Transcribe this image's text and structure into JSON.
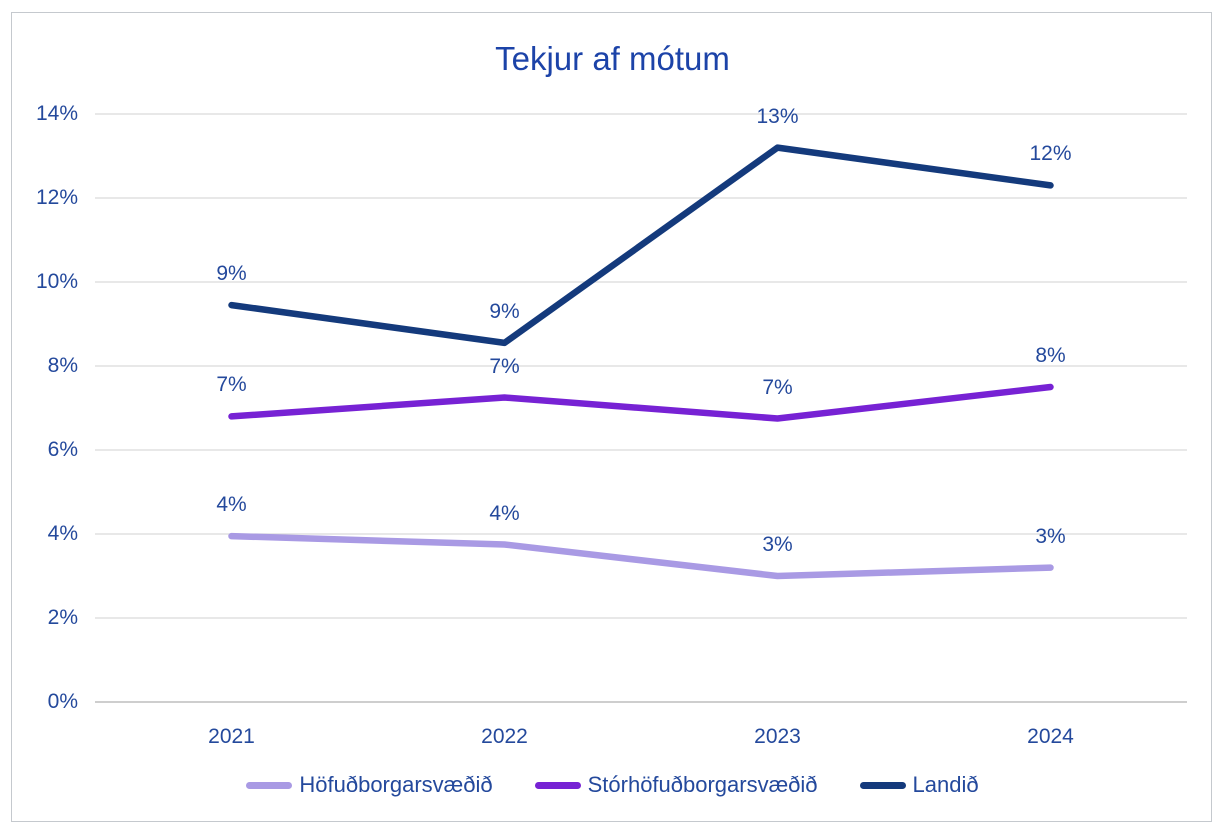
{
  "chart_data": {
    "type": "line",
    "title": "Tekjur af mótum",
    "categories": [
      "2021",
      "2022",
      "2023",
      "2024"
    ],
    "series": [
      {
        "name": "Höfuðborgarsvæðið",
        "color": "#a99ae4",
        "values": [
          3.95,
          3.75,
          3.0,
          3.2
        ],
        "point_labels": [
          "4%",
          "4%",
          "3%",
          "3%"
        ]
      },
      {
        "name": "Stórhöfuðborgarsvæðið",
        "color": "#7722d4",
        "values": [
          6.8,
          7.25,
          6.75,
          7.5
        ],
        "point_labels": [
          "7%",
          "7%",
          "7%",
          "8%"
        ]
      },
      {
        "name": "Landið",
        "color": "#143a7c",
        "values": [
          9.45,
          8.55,
          13.2,
          12.3
        ],
        "point_labels": [
          "9%",
          "9%",
          "13%",
          "12%"
        ]
      }
    ],
    "y_axis": {
      "min": 0,
      "max": 14,
      "step": 2,
      "tick_labels": [
        "0%",
        "2%",
        "4%",
        "6%",
        "8%",
        "10%",
        "12%",
        "14%"
      ]
    },
    "x_axis": {
      "tick_labels": [
        "2021",
        "2022",
        "2023",
        "2024"
      ]
    },
    "grid": true,
    "legend_position": "bottom",
    "colors": {
      "grid_line": "#d9d9d9",
      "axis_line": "#bdbdbd",
      "label_text": "#24499c",
      "title_text": "#1c43a8"
    }
  }
}
